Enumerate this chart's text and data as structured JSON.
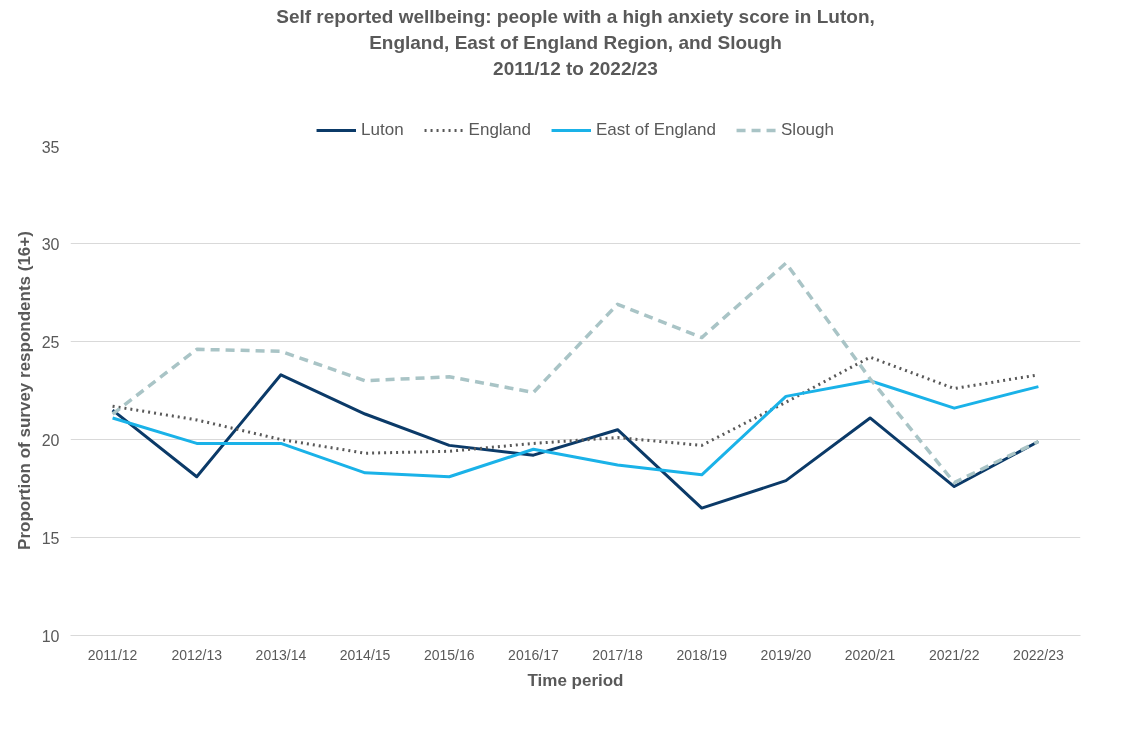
{
  "chart_data": {
    "type": "line",
    "title": "Self reported wellbeing: people with a high anxiety score in Luton,\nEngland, East of England Region, and Slough\n2011/12 to 2022/23",
    "xlabel": "Time period",
    "ylabel": "Proportion of survey respondents (16+)",
    "categories": [
      "2011/12",
      "2012/13",
      "2013/14",
      "2014/15",
      "2015/16",
      "2016/17",
      "2017/18",
      "2018/19",
      "2019/20",
      "2020/21",
      "2021/22",
      "2022/23"
    ],
    "series": [
      {
        "name": "Luton",
        "color": "#0b3a68",
        "line_style": "solid",
        "values": [
          21.5,
          18.1,
          23.3,
          21.3,
          19.7,
          19.2,
          20.5,
          16.5,
          17.9,
          21.1,
          17.6,
          19.9
        ]
      },
      {
        "name": "England",
        "color": "#595959",
        "line_style": "dotted",
        "values": [
          21.7,
          21.0,
          20.0,
          19.3,
          19.4,
          19.8,
          20.1,
          19.7,
          21.9,
          24.2,
          22.6,
          23.3
        ]
      },
      {
        "name": "East of England",
        "color": "#1ab2e8",
        "line_style": "solid",
        "values": [
          21.1,
          19.8,
          19.8,
          18.3,
          18.1,
          19.5,
          18.7,
          18.2,
          22.2,
          23.0,
          21.6,
          22.7
        ]
      },
      {
        "name": "Slough",
        "color": "#a9c4c6",
        "line_style": "dashed",
        "values": [
          21.3,
          24.6,
          24.5,
          23.0,
          23.2,
          22.4,
          26.9,
          25.2,
          29.0,
          23.1,
          17.8,
          19.9
        ]
      }
    ],
    "ylim": [
      10,
      35
    ],
    "yticks": [
      10,
      15,
      20,
      25,
      30,
      35
    ],
    "grid": "y",
    "legend": "top"
  }
}
